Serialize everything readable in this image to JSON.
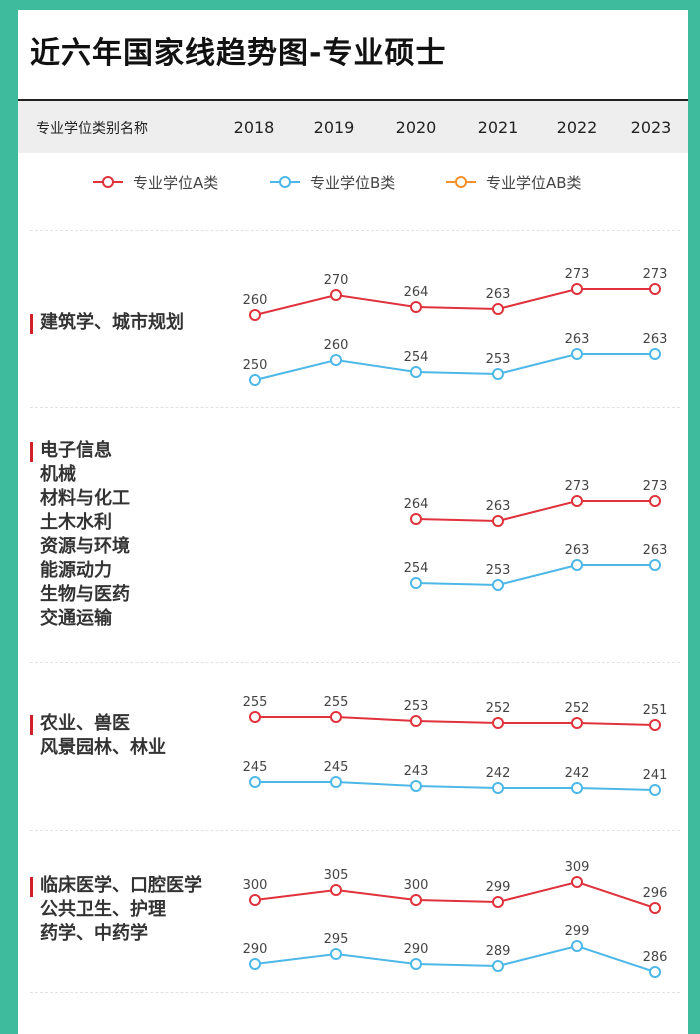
{
  "title": "近六年国家线趋势图-专业硕士",
  "header": {
    "name_col": "专业学位类别名称",
    "years": [
      "2018",
      "2019",
      "2020",
      "2021",
      "2022",
      "2023"
    ]
  },
  "legend": [
    {
      "label": "专业学位A类",
      "color": "#e0323c"
    },
    {
      "label": "专业学位B类",
      "color": "#4db8e8"
    },
    {
      "label": "专业学位AB类",
      "color": "#f5902a"
    }
  ],
  "groups": [
    {
      "lines": [
        "建筑学、城市规划"
      ]
    },
    {
      "lines": [
        "电子信息",
        "机械",
        "材料与化工",
        "土木水利",
        "资源与环境",
        "能源动力",
        "生物与医药",
        "交通运输"
      ]
    },
    {
      "lines": [
        "农业、兽医",
        "风景园林、林业"
      ]
    },
    {
      "lines": [
        "临床医学、口腔医学",
        "公共卫生、护理",
        "药学、中药学"
      ]
    }
  ],
  "chart_data": {
    "type": "line",
    "categories": [
      "2018",
      "2019",
      "2020",
      "2021",
      "2022",
      "2023"
    ],
    "panels": [
      {
        "group": "建筑学、城市规划",
        "series": [
          {
            "name": "专业学位A类",
            "values": [
              260,
              270,
              264,
              263,
              273,
              273
            ]
          },
          {
            "name": "专业学位B类",
            "values": [
              250,
              260,
              254,
              253,
              263,
              263
            ]
          }
        ]
      },
      {
        "group": "电子信息 机械 材料与化工 土木水利 资源与环境 能源动力 生物与医药 交通运输",
        "series": [
          {
            "name": "专业学位A类",
            "values": [
              null,
              null,
              264,
              263,
              273,
              273
            ]
          },
          {
            "name": "专业学位B类",
            "values": [
              null,
              null,
              254,
              253,
              263,
              263
            ]
          }
        ]
      },
      {
        "group": "农业、兽医 风景园林、林业",
        "series": [
          {
            "name": "专业学位A类",
            "values": [
              255,
              255,
              253,
              252,
              252,
              251
            ]
          },
          {
            "name": "专业学位B类",
            "values": [
              245,
              245,
              243,
              242,
              242,
              241
            ]
          }
        ]
      },
      {
        "group": "临床医学、口腔医学 公共卫生、护理 药学、中药学",
        "series": [
          {
            "name": "专业学位A类",
            "values": [
              300,
              305,
              300,
              299,
              309,
              296
            ]
          },
          {
            "name": "专业学位B类",
            "values": [
              290,
              295,
              290,
              289,
              299,
              286
            ]
          }
        ]
      }
    ]
  }
}
